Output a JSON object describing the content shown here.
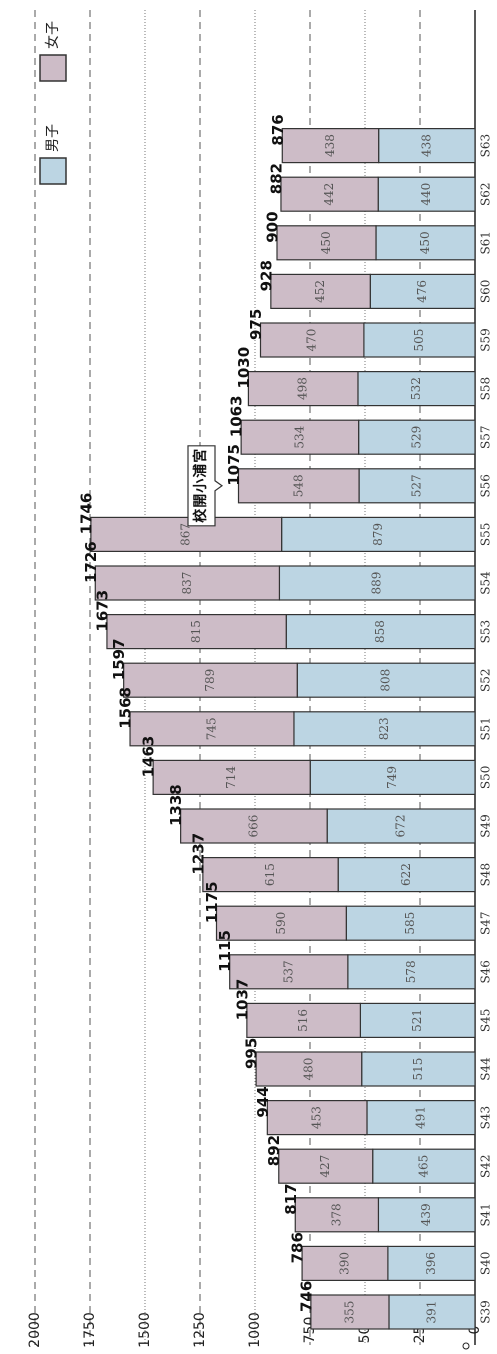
{
  "chart_data": {
    "type": "bar",
    "stacked": true,
    "orientation": "horizontal",
    "categories": [
      "S39",
      "S40",
      "S41",
      "S42",
      "S43",
      "S44",
      "S45",
      "S46",
      "S47",
      "S48",
      "S49",
      "S50",
      "S51",
      "S52",
      "S53",
      "S54",
      "S55",
      "S56",
      "S57",
      "S58",
      "S59",
      "S60",
      "S61",
      "S62",
      "S63"
    ],
    "series": [
      {
        "name": "男子",
        "values": [
          391,
          396,
          439,
          465,
          491,
          515,
          521,
          578,
          585,
          622,
          672,
          749,
          823,
          808,
          858,
          889,
          879,
          527,
          529,
          532,
          505,
          476,
          450,
          440,
          438
        ],
        "color": "#bcd5e3"
      },
      {
        "name": "女子",
        "values": [
          355,
          390,
          378,
          427,
          453,
          480,
          516,
          537,
          590,
          615,
          666,
          714,
          745,
          789,
          815,
          837,
          867,
          548,
          534,
          498,
          470,
          452,
          450,
          442,
          438
        ],
        "color": "#cdbcc7"
      }
    ],
    "totals": [
      "746",
      "786",
      "817",
      "892",
      "944",
      "995",
      "1037",
      "1115",
      "1175",
      "1237",
      "1338",
      "1463",
      "1568",
      "1597",
      "1673",
      "1726",
      "1746",
      "1075",
      "1063",
      "1030",
      "975",
      "928",
      "900",
      "882",
      "876"
    ],
    "value_axis": {
      "min": 0,
      "max": 2000,
      "ticks": [
        "0",
        "250",
        "500",
        "750",
        "1000",
        "1250",
        "1500",
        "1750",
        "2000"
      ]
    },
    "annotation": {
      "text": "宮浦小開校",
      "category": "S56"
    },
    "legend": {
      "placement": "top-right"
    },
    "grid": true,
    "title": "",
    "xlabel": "",
    "ylabel": ""
  }
}
